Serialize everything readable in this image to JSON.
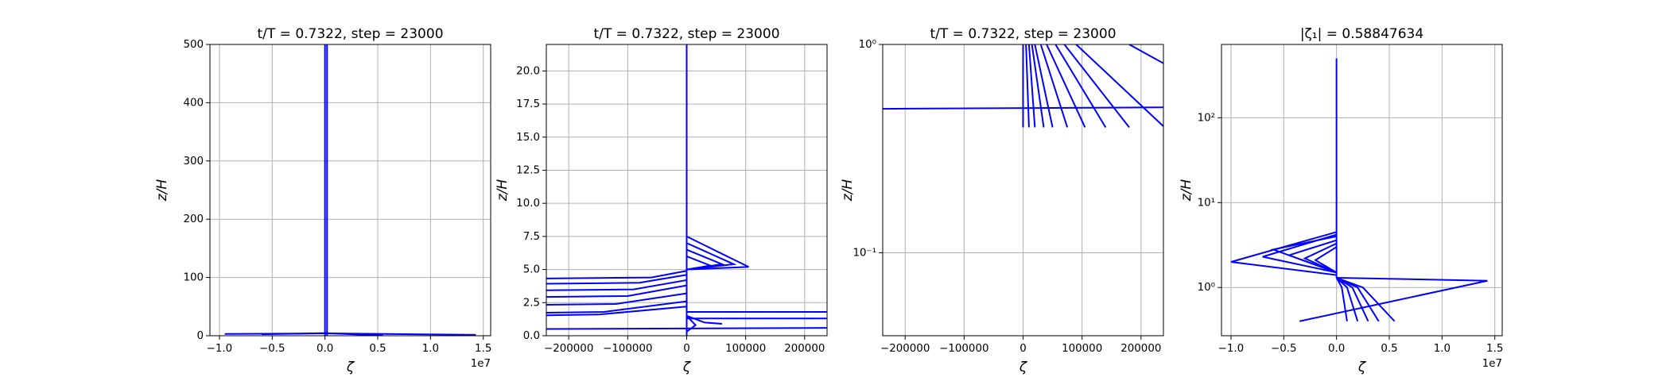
{
  "chart_data": [
    {
      "type": "line",
      "title": "t/T = 0.7322, step = 23000",
      "xlabel": "ζ",
      "ylabel": "z/H",
      "grid": true,
      "yscale": "linear",
      "xlim": [
        -10900000,
        15700000
      ],
      "ylim": [
        0,
        500
      ],
      "xticks": [
        {
          "value": -10000000,
          "label": "−1.0"
        },
        {
          "value": -5000000,
          "label": "−0.5"
        },
        {
          "value": 0,
          "label": "0.0"
        },
        {
          "value": 5000000,
          "label": "0.5"
        },
        {
          "value": 10000000,
          "label": "1.0"
        },
        {
          "value": 15000000,
          "label": "1.5"
        }
      ],
      "x_offset_label": "1e7",
      "yticks": [
        0,
        100,
        200,
        300,
        400,
        500
      ],
      "series": [
        {
          "color": "#0000ff",
          "x": [
            0,
            0,
            0
          ],
          "values": [
            0,
            5,
            500
          ]
        },
        {
          "color": "#0000ff",
          "x": [
            -9500000,
            0,
            14300000
          ],
          "values": [
            3,
            4,
            1.5
          ]
        },
        {
          "color": "#0000ff",
          "x": [
            -6000000,
            0,
            5500000
          ],
          "values": [
            2.5,
            4.5,
            0.4
          ]
        },
        {
          "color": "#0000ff",
          "x": [
            200000,
            200000
          ],
          "values": [
            0,
            500
          ]
        }
      ]
    },
    {
      "type": "line",
      "title": "t/T = 0.7322, step = 23000",
      "xlabel": "ζ",
      "ylabel": "z/H",
      "grid": true,
      "yscale": "linear",
      "xlim": [
        -238000,
        238000
      ],
      "ylim": [
        0,
        22
      ],
      "xticks": [
        {
          "value": -200000,
          "label": "−200000"
        },
        {
          "value": -100000,
          "label": "−100000"
        },
        0,
        100000,
        200000
      ],
      "yticks": [
        {
          "value": 0,
          "label": "0.0"
        },
        2.5,
        {
          "value": 5,
          "label": "5.0"
        },
        7.5,
        {
          "value": 10,
          "label": "10.0"
        },
        12.5,
        {
          "value": 15,
          "label": "15.0"
        },
        17.5,
        {
          "value": 20,
          "label": "20.0"
        }
      ],
      "series": [
        {
          "color": "#0000ff",
          "x": [
            0,
            0,
            0
          ],
          "values": [
            0,
            7.5,
            22
          ]
        },
        {
          "color": "#0000ff",
          "x": [
            -300000,
            -60000,
            0
          ],
          "values": [
            4.3,
            4.4,
            4.9
          ]
        },
        {
          "color": "#0000ff",
          "x": [
            -300000,
            -80000,
            0
          ],
          "values": [
            3.9,
            4.0,
            4.6
          ]
        },
        {
          "color": "#0000ff",
          "x": [
            -300000,
            -90000,
            0
          ],
          "values": [
            3.4,
            3.5,
            4.2
          ]
        },
        {
          "color": "#0000ff",
          "x": [
            -300000,
            -100000,
            0
          ],
          "values": [
            2.9,
            3.0,
            3.8
          ]
        },
        {
          "color": "#0000ff",
          "x": [
            -300000,
            -120000,
            0
          ],
          "values": [
            2.3,
            2.4,
            3.2
          ]
        },
        {
          "color": "#0000ff",
          "x": [
            -300000,
            -140000,
            0
          ],
          "values": [
            1.7,
            1.8,
            2.6
          ]
        },
        {
          "color": "#0000ff",
          "x": [
            -300000,
            -150000,
            0
          ],
          "values": [
            1.5,
            1.6,
            2.2
          ]
        },
        {
          "color": "#0000ff",
          "x": [
            0,
            105000,
            0
          ],
          "values": [
            7.5,
            5.2,
            5.0
          ]
        },
        {
          "color": "#0000ff",
          "x": [
            0,
            80000,
            0
          ],
          "values": [
            7.0,
            5.4,
            5.0
          ]
        },
        {
          "color": "#0000ff",
          "x": [
            0,
            60000,
            0
          ],
          "values": [
            6.5,
            5.4,
            5.0
          ]
        },
        {
          "color": "#0000ff",
          "x": [
            0,
            40000,
            0
          ],
          "values": [
            6.0,
            5.3,
            5.0
          ]
        },
        {
          "color": "#0000ff",
          "x": [
            0,
            300000
          ],
          "values": [
            1.8,
            1.8
          ]
        },
        {
          "color": "#0000ff",
          "x": [
            0,
            300000
          ],
          "values": [
            1.3,
            1.3
          ]
        },
        {
          "color": "#0000ff",
          "x": [
            -300000,
            300000
          ],
          "values": [
            0.5,
            0.6
          ]
        },
        {
          "color": "#0000ff",
          "x": [
            0,
            15000,
            0
          ],
          "values": [
            1.5,
            0.8,
            0.3
          ]
        },
        {
          "color": "#0000ff",
          "x": [
            0,
            30000,
            60000
          ],
          "values": [
            1.5,
            1.0,
            0.9
          ]
        }
      ]
    },
    {
      "type": "line",
      "title": "t/T = 0.7322, step = 23000",
      "xlabel": "ζ",
      "ylabel": "z/H",
      "grid": true,
      "yscale": "log",
      "xlim": [
        -238000,
        238000
      ],
      "ylim": [
        0.04,
        1
      ],
      "xticks": [
        {
          "value": -200000,
          "label": "−200000"
        },
        {
          "value": -100000,
          "label": "−100000"
        },
        0,
        100000,
        200000
      ],
      "yticks": [
        {
          "value": 0.1,
          "label": "10⁻¹"
        },
        {
          "value": 1,
          "label": "10⁰"
        }
      ],
      "series": [
        {
          "color": "#0000ff",
          "x": [
            0,
            0
          ],
          "values": [
            1,
            0.4
          ]
        },
        {
          "color": "#0000ff",
          "x": [
            5000,
            10000
          ],
          "values": [
            1,
            0.4
          ]
        },
        {
          "color": "#0000ff",
          "x": [
            10000,
            20000
          ],
          "values": [
            1,
            0.4
          ]
        },
        {
          "color": "#0000ff",
          "x": [
            15000,
            35000
          ],
          "values": [
            1,
            0.4
          ]
        },
        {
          "color": "#0000ff",
          "x": [
            20000,
            50000
          ],
          "values": [
            1,
            0.4
          ]
        },
        {
          "color": "#0000ff",
          "x": [
            30000,
            75000
          ],
          "values": [
            1,
            0.4
          ]
        },
        {
          "color": "#0000ff",
          "x": [
            40000,
            105000
          ],
          "values": [
            1,
            0.4
          ]
        },
        {
          "color": "#0000ff",
          "x": [
            55000,
            140000
          ],
          "values": [
            1,
            0.4
          ]
        },
        {
          "color": "#0000ff",
          "x": [
            70000,
            180000
          ],
          "values": [
            1,
            0.4
          ]
        },
        {
          "color": "#0000ff",
          "x": [
            90000,
            240000
          ],
          "values": [
            1,
            0.4
          ]
        },
        {
          "color": "#0000ff",
          "x": [
            180000,
            260000
          ],
          "values": [
            1,
            0.75
          ]
        },
        {
          "color": "#0000ff",
          "x": [
            -300000,
            300000
          ],
          "values": [
            0.49,
            0.5
          ]
        }
      ]
    },
    {
      "type": "line",
      "title": "|ζ₁| = 0.58847634",
      "xlabel": "ζ",
      "ylabel": "z/H",
      "grid": true,
      "yscale": "log",
      "xlim": [
        -10900000,
        15700000
      ],
      "ylim": [
        0.27,
        730
      ],
      "xticks": [
        {
          "value": -10000000,
          "label": "−1.0"
        },
        {
          "value": -5000000,
          "label": "−0.5"
        },
        {
          "value": 0,
          "label": "0.0"
        },
        {
          "value": 5000000,
          "label": "0.5"
        },
        {
          "value": 10000000,
          "label": "1.0"
        },
        {
          "value": 15000000,
          "label": "1.5"
        }
      ],
      "x_offset_label": "1e7",
      "yticks": [
        {
          "value": 1,
          "label": "10⁰"
        },
        {
          "value": 10,
          "label": "10¹"
        },
        {
          "value": 100,
          "label": "10²"
        }
      ],
      "series": [
        {
          "color": "#0000ff",
          "x": [
            0,
            0
          ],
          "values": [
            1.3,
            500
          ]
        },
        {
          "color": "#0000ff",
          "x": [
            0,
            -10000000,
            0
          ],
          "values": [
            4.5,
            2.0,
            1.4
          ]
        },
        {
          "color": "#0000ff",
          "x": [
            0,
            14300000,
            -3500000
          ],
          "values": [
            1.3,
            1.2,
            0.4
          ]
        },
        {
          "color": "#0000ff",
          "x": [
            0,
            -7000000,
            0
          ],
          "values": [
            4.2,
            2.3,
            1.5
          ]
        },
        {
          "color": "#0000ff",
          "x": [
            0,
            -6000000,
            0
          ],
          "values": [
            4.0,
            2.8,
            1.5
          ]
        },
        {
          "color": "#0000ff",
          "x": [
            0,
            -4500000,
            0
          ],
          "values": [
            3.6,
            2.4,
            1.5
          ]
        },
        {
          "color": "#0000ff",
          "x": [
            0,
            -3000000,
            0
          ],
          "values": [
            3.3,
            2.2,
            1.5
          ]
        },
        {
          "color": "#0000ff",
          "x": [
            0,
            -2000000,
            0
          ],
          "values": [
            3.0,
            2.1,
            1.5
          ]
        },
        {
          "color": "#0000ff",
          "x": [
            0,
            2500000,
            5500000
          ],
          "values": [
            1.3,
            1.0,
            0.4
          ]
        },
        {
          "color": "#0000ff",
          "x": [
            0,
            2000000,
            4000000
          ],
          "values": [
            1.3,
            1.0,
            0.4
          ]
        },
        {
          "color": "#0000ff",
          "x": [
            0,
            1500000,
            3000000
          ],
          "values": [
            1.3,
            1.0,
            0.4
          ]
        },
        {
          "color": "#0000ff",
          "x": [
            0,
            1000000,
            2000000
          ],
          "values": [
            1.3,
            1.0,
            0.4
          ]
        },
        {
          "color": "#0000ff",
          "x": [
            0,
            500000,
            1000000
          ],
          "values": [
            1.3,
            1.0,
            0.4
          ]
        }
      ]
    }
  ]
}
